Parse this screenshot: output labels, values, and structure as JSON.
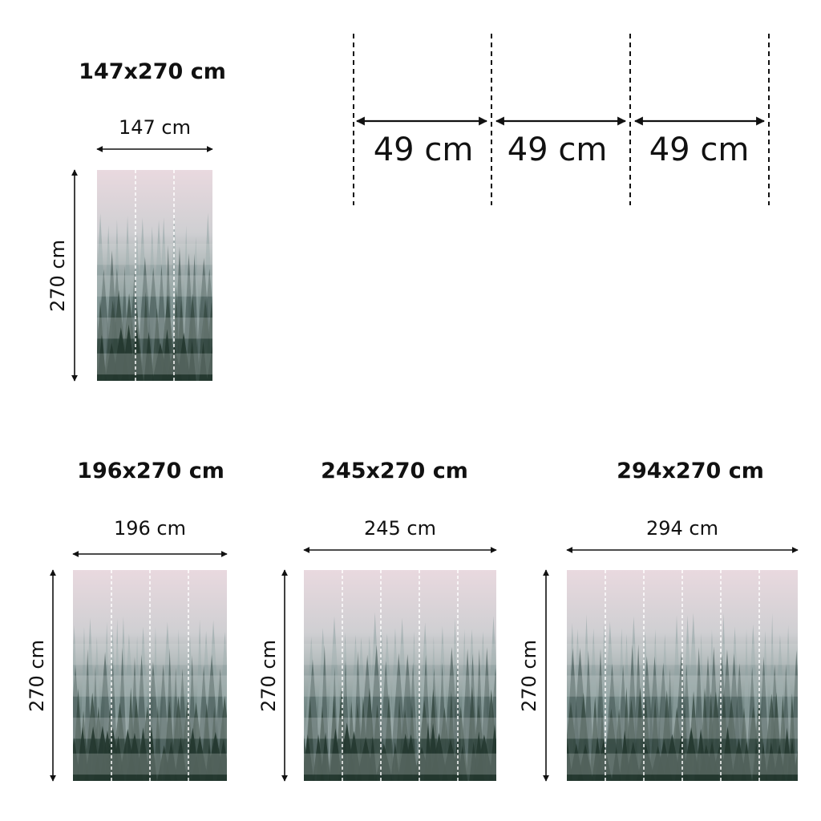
{
  "panels": [
    {
      "id": "147",
      "title": "147x270 cm",
      "width_label": "147 cm",
      "height_label": "270 cm",
      "width_cm": 147,
      "height_cm": 270,
      "strips": 3
    },
    {
      "id": "196",
      "title": "196x270 cm",
      "width_label": "196 cm",
      "height_label": "270 cm",
      "width_cm": 196,
      "height_cm": 270,
      "strips": 4
    },
    {
      "id": "245",
      "title": "245x270 cm",
      "width_label": "245 cm",
      "height_label": "270 cm",
      "width_cm": 245,
      "height_cm": 270,
      "strips": 5
    },
    {
      "id": "294",
      "title": "294x270 cm",
      "width_label": "294 cm",
      "height_label": "270 cm",
      "width_cm": 294,
      "height_cm": 270,
      "strips": 6
    }
  ],
  "strip_diagram": {
    "segments": [
      {
        "label": "49 cm"
      },
      {
        "label": "49 cm"
      },
      {
        "label": "49 cm"
      }
    ]
  },
  "colors": {
    "sky": "#e9d9df",
    "fog": "#b9c6c4",
    "forest": "#2c423d",
    "line": "#111111"
  }
}
